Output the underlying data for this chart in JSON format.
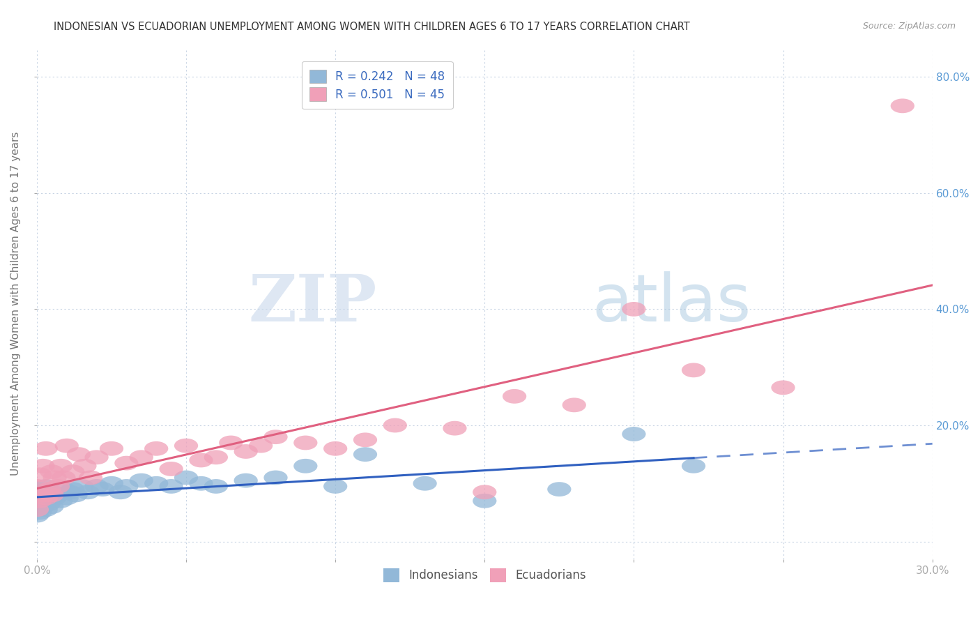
{
  "title": "INDONESIAN VS ECUADORIAN UNEMPLOYMENT AMONG WOMEN WITH CHILDREN AGES 6 TO 17 YEARS CORRELATION CHART",
  "source": "Source: ZipAtlas.com",
  "ylabel": "Unemployment Among Women with Children Ages 6 to 17 years",
  "xlim": [
    0.0,
    0.3
  ],
  "ylim": [
    -0.03,
    0.85
  ],
  "x_ticks": [
    0.0,
    0.05,
    0.1,
    0.15,
    0.2,
    0.25,
    0.3
  ],
  "y_ticks": [
    0.0,
    0.2,
    0.4,
    0.6,
    0.8
  ],
  "indonesian_R": "0.242",
  "indonesian_N": "48",
  "ecuadorian_R": "0.501",
  "ecuadorian_N": "45",
  "indonesian_color": "#92b8d8",
  "ecuadorian_color": "#f0a0b8",
  "indonesian_line_color": "#3060c0",
  "ecuadorian_line_color": "#e06080",
  "legend_label_indonesian": "Indonesians",
  "legend_label_ecuadorian": "Ecuadorians",
  "watermark_zip": "ZIP",
  "watermark_atlas": "atlas",
  "background_color": "#ffffff",
  "grid_color": "#c8d4e4",
  "indonesian_x": [
    0.0,
    0.0,
    0.0,
    0.0,
    0.0,
    0.001,
    0.001,
    0.001,
    0.002,
    0.002,
    0.003,
    0.003,
    0.003,
    0.004,
    0.004,
    0.005,
    0.005,
    0.006,
    0.007,
    0.008,
    0.009,
    0.01,
    0.011,
    0.012,
    0.013,
    0.015,
    0.017,
    0.02,
    0.022,
    0.025,
    0.028,
    0.03,
    0.035,
    0.04,
    0.045,
    0.05,
    0.055,
    0.06,
    0.07,
    0.08,
    0.09,
    0.1,
    0.11,
    0.13,
    0.15,
    0.175,
    0.2,
    0.22
  ],
  "indonesian_y": [
    0.045,
    0.055,
    0.065,
    0.075,
    0.085,
    0.05,
    0.07,
    0.09,
    0.06,
    0.08,
    0.055,
    0.07,
    0.095,
    0.065,
    0.08,
    0.06,
    0.085,
    0.075,
    0.08,
    0.07,
    0.09,
    0.075,
    0.085,
    0.09,
    0.08,
    0.095,
    0.085,
    0.095,
    0.09,
    0.1,
    0.085,
    0.095,
    0.105,
    0.1,
    0.095,
    0.11,
    0.1,
    0.095,
    0.105,
    0.11,
    0.13,
    0.095,
    0.15,
    0.1,
    0.07,
    0.09,
    0.185,
    0.13
  ],
  "ecuadorian_x": [
    0.0,
    0.0,
    0.001,
    0.001,
    0.002,
    0.002,
    0.003,
    0.003,
    0.004,
    0.005,
    0.005,
    0.006,
    0.007,
    0.008,
    0.009,
    0.01,
    0.012,
    0.014,
    0.016,
    0.018,
    0.02,
    0.025,
    0.03,
    0.035,
    0.04,
    0.045,
    0.05,
    0.055,
    0.06,
    0.065,
    0.07,
    0.075,
    0.08,
    0.09,
    0.1,
    0.11,
    0.12,
    0.14,
    0.15,
    0.16,
    0.18,
    0.2,
    0.22,
    0.25,
    0.29
  ],
  "ecuadorian_y": [
    0.055,
    0.095,
    0.07,
    0.115,
    0.08,
    0.13,
    0.075,
    0.16,
    0.09,
    0.08,
    0.12,
    0.11,
    0.095,
    0.13,
    0.11,
    0.165,
    0.12,
    0.15,
    0.13,
    0.11,
    0.145,
    0.16,
    0.135,
    0.145,
    0.16,
    0.125,
    0.165,
    0.14,
    0.145,
    0.17,
    0.155,
    0.165,
    0.18,
    0.17,
    0.16,
    0.175,
    0.2,
    0.195,
    0.085,
    0.25,
    0.235,
    0.4,
    0.295,
    0.265,
    0.75
  ],
  "trend_line_solid_end": 0.22,
  "trend_line_dashed_start": 0.22,
  "trend_line_end": 0.3
}
